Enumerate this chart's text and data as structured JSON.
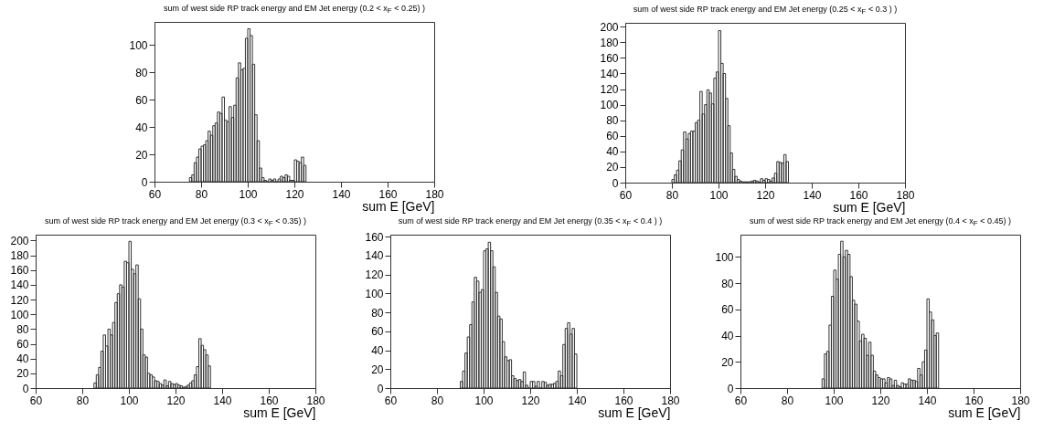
{
  "chart_data": [
    {
      "type": "histogram",
      "title": "sum of west side RP track energy and EM Jet energy (0.2 < x$_{F}$ < 0.25) )",
      "xlabel": "sum E [GeV]",
      "color": "#333333",
      "xlim": [
        60,
        180
      ],
      "xticks": [
        60,
        80,
        100,
        120,
        140,
        160,
        180
      ],
      "ylim": [
        0,
        117
      ],
      "yticks": [
        0,
        20,
        40,
        60,
        80,
        100
      ],
      "bins": [
        75,
        76,
        77,
        78,
        79,
        80,
        81,
        82,
        83,
        84,
        85,
        86,
        87,
        88,
        89,
        90,
        91,
        92,
        93,
        94,
        95,
        96,
        97,
        98,
        99,
        100,
        101,
        102,
        103,
        104,
        105,
        106,
        107,
        108,
        109,
        110,
        111,
        112,
        113,
        114,
        115,
        116,
        117,
        118,
        119,
        120,
        121,
        122,
        123,
        124,
        125
      ],
      "values": [
        3,
        5,
        14,
        18,
        24,
        26,
        27,
        30,
        37,
        34,
        41,
        43,
        51,
        50,
        62,
        45,
        44,
        55,
        47,
        56,
        76,
        87,
        82,
        83,
        105,
        112,
        107,
        86,
        49,
        30,
        10,
        3,
        1,
        0,
        2,
        1,
        2,
        0,
        2,
        4,
        3,
        5,
        4,
        1,
        1,
        16,
        15,
        14,
        18,
        12
      ]
    },
    {
      "type": "histogram",
      "title": "sum of west side RP track energy and EM Jet energy (0.25 < x$_{F}$ < 0.3 ) )",
      "xlabel": "sum E [GeV]",
      "color": "#333333",
      "xlim": [
        60,
        180
      ],
      "xticks": [
        60,
        80,
        100,
        120,
        140,
        160,
        180
      ],
      "ylim": [
        0,
        205
      ],
      "yticks": [
        0,
        20,
        40,
        60,
        80,
        100,
        120,
        140,
        160,
        180,
        200
      ],
      "bins": [
        80,
        81,
        82,
        83,
        84,
        85,
        86,
        87,
        88,
        89,
        90,
        91,
        92,
        93,
        94,
        95,
        96,
        97,
        98,
        99,
        100,
        101,
        102,
        103,
        104,
        105,
        106,
        107,
        108,
        109,
        110,
        111,
        112,
        113,
        114,
        115,
        116,
        117,
        118,
        119,
        120,
        121,
        122,
        123,
        124,
        125,
        126,
        127,
        128,
        129,
        130
      ],
      "values": [
        4,
        10,
        16,
        28,
        42,
        65,
        56,
        63,
        66,
        66,
        77,
        80,
        117,
        88,
        100,
        119,
        115,
        101,
        134,
        142,
        195,
        153,
        140,
        108,
        73,
        38,
        17,
        8,
        4,
        2,
        1,
        1,
        1,
        1,
        2,
        3,
        2,
        1,
        5,
        3,
        5,
        4,
        2,
        6,
        12,
        27,
        26,
        25,
        36,
        27
      ]
    },
    {
      "type": "histogram",
      "title": "sum of west side RP track energy and EM Jet energy (0.3 < x$_{F}$ < 0.35) )",
      "xlabel": "sum E [GeV]",
      "color": "#333333",
      "xlim": [
        60,
        180
      ],
      "xticks": [
        60,
        80,
        100,
        120,
        140,
        160,
        180
      ],
      "ylim": [
        0,
        208
      ],
      "yticks": [
        0,
        20,
        40,
        60,
        80,
        100,
        120,
        140,
        160,
        180,
        200
      ],
      "bins": [
        85,
        86,
        87,
        88,
        89,
        90,
        91,
        92,
        93,
        94,
        95,
        96,
        97,
        98,
        99,
        100,
        101,
        102,
        103,
        104,
        105,
        106,
        107,
        108,
        109,
        110,
        111,
        112,
        113,
        114,
        115,
        116,
        117,
        118,
        119,
        120,
        121,
        122,
        123,
        124,
        125,
        126,
        127,
        128,
        129,
        130,
        131,
        132,
        133,
        134,
        135
      ],
      "values": [
        7,
        18,
        28,
        50,
        72,
        57,
        80,
        72,
        89,
        116,
        128,
        140,
        137,
        172,
        170,
        199,
        161,
        155,
        167,
        121,
        80,
        45,
        42,
        20,
        18,
        15,
        10,
        9,
        6,
        4,
        11,
        3,
        9,
        6,
        5,
        6,
        4,
        3,
        1,
        2,
        4,
        7,
        10,
        18,
        29,
        67,
        58,
        52,
        45,
        30
      ]
    },
    {
      "type": "histogram",
      "title": "sum of west side RP track energy and EM Jet energy (0.35 < x$_{F}$ < 0.4 ) )",
      "xlabel": "sum E [GeV]",
      "color": "#333333",
      "xlim": [
        60,
        180
      ],
      "xticks": [
        60,
        80,
        100,
        120,
        140,
        160,
        180
      ],
      "ylim": [
        0,
        162
      ],
      "yticks": [
        0,
        20,
        40,
        60,
        80,
        100,
        120,
        140,
        160
      ],
      "bins": [
        90,
        91,
        92,
        93,
        94,
        95,
        96,
        97,
        98,
        99,
        100,
        101,
        102,
        103,
        104,
        105,
        106,
        107,
        108,
        109,
        110,
        111,
        112,
        113,
        114,
        115,
        116,
        117,
        118,
        119,
        120,
        121,
        122,
        123,
        124,
        125,
        126,
        127,
        128,
        129,
        130,
        131,
        132,
        133,
        134,
        135,
        136,
        137,
        138,
        139,
        140
      ],
      "values": [
        7,
        18,
        37,
        54,
        67,
        91,
        117,
        113,
        101,
        104,
        145,
        147,
        154,
        145,
        128,
        101,
        76,
        73,
        49,
        33,
        29,
        30,
        13,
        10,
        8,
        9,
        7,
        17,
        3,
        0,
        7,
        7,
        2,
        7,
        0,
        7,
        6,
        3,
        4,
        4,
        5,
        7,
        18,
        13,
        46,
        63,
        69,
        57,
        63,
        36
      ]
    },
    {
      "type": "histogram",
      "title": "sum of west side RP track energy and EM Jet energy (0.4 < x$_{F}$ < 0.45) )",
      "xlabel": "sum E [GeV]",
      "color": "#333333",
      "xlim": [
        60,
        180
      ],
      "xticks": [
        60,
        80,
        100,
        120,
        140,
        160,
        180
      ],
      "ylim": [
        0,
        117
      ],
      "yticks": [
        0,
        20,
        40,
        60,
        80,
        100
      ],
      "bins": [
        95,
        96,
        97,
        98,
        99,
        100,
        101,
        102,
        103,
        104,
        105,
        106,
        107,
        108,
        109,
        110,
        111,
        112,
        113,
        114,
        115,
        116,
        117,
        118,
        119,
        120,
        121,
        122,
        123,
        124,
        125,
        126,
        127,
        128,
        129,
        130,
        131,
        132,
        133,
        134,
        135,
        136,
        137,
        138,
        139,
        140,
        141,
        142,
        143,
        144,
        145
      ],
      "values": [
        7,
        26,
        28,
        48,
        70,
        90,
        83,
        102,
        112,
        100,
        105,
        102,
        85,
        67,
        64,
        51,
        36,
        41,
        38,
        25,
        35,
        25,
        13,
        10,
        8,
        7,
        7,
        4,
        8,
        7,
        2,
        6,
        2,
        1,
        4,
        3,
        3,
        7,
        6,
        6,
        5,
        15,
        10,
        20,
        29,
        68,
        58,
        52,
        40,
        42
      ]
    }
  ]
}
